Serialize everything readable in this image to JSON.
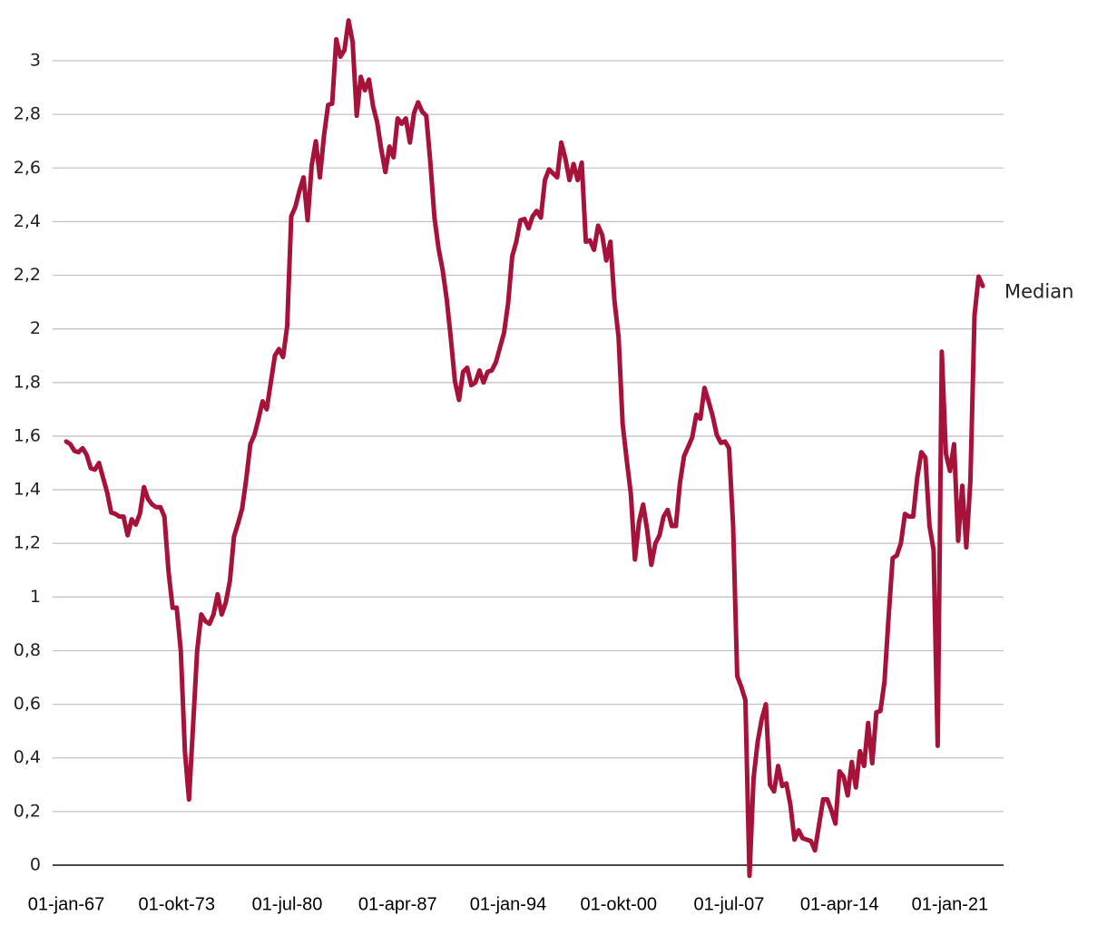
{
  "chart_data": {
    "type": "line",
    "categories": [
      "01-jan-67",
      null,
      null,
      null,
      null,
      null,
      null,
      null,
      null,
      null,
      null,
      null,
      null,
      null,
      null,
      null,
      null,
      null,
      null,
      null,
      null,
      null,
      null,
      null,
      null,
      null,
      null,
      "01-okt-73",
      null,
      null,
      null,
      null,
      null,
      null,
      null,
      null,
      null,
      null,
      null,
      null,
      null,
      null,
      null,
      null,
      null,
      null,
      null,
      null,
      null,
      null,
      null,
      null,
      null,
      null,
      "01-jul-80",
      null,
      null,
      null,
      null,
      null,
      null,
      null,
      null,
      null,
      null,
      null,
      null,
      null,
      null,
      null,
      null,
      null,
      null,
      null,
      null,
      null,
      null,
      null,
      null,
      null,
      null,
      "01-apr-87",
      null,
      null,
      null,
      null,
      null,
      null,
      null,
      null,
      null,
      null,
      null,
      null,
      null,
      null,
      null,
      null,
      null,
      null,
      null,
      null,
      null,
      null,
      null,
      null,
      null,
      null,
      "01-jan-94",
      null,
      null,
      null,
      null,
      null,
      null,
      null,
      null,
      null,
      null,
      null,
      null,
      null,
      null,
      null,
      null,
      null,
      null,
      null,
      null,
      null,
      null,
      null,
      null,
      null,
      null,
      "01-okt-00",
      null,
      null,
      null,
      null,
      null,
      null,
      null,
      null,
      null,
      null,
      null,
      null,
      null,
      null,
      null,
      null,
      null,
      null,
      null,
      null,
      null,
      null,
      null,
      null,
      null,
      null,
      "01-jul-07",
      null,
      null,
      null,
      null,
      null,
      null,
      null,
      null,
      null,
      null,
      null,
      null,
      null,
      null,
      null,
      null,
      null,
      null,
      null,
      null,
      null,
      null,
      null,
      null,
      null,
      null,
      "01-apr-14",
      null,
      null,
      null,
      null,
      null,
      null,
      null,
      null,
      null,
      null,
      null,
      null,
      null,
      null,
      null,
      null,
      null,
      null,
      null,
      null,
      null,
      null,
      null,
      null,
      null,
      null,
      "01-jan-21",
      null,
      null,
      null,
      null,
      null,
      null,
      null,
      null
    ],
    "series": [
      {
        "name": "Median",
        "color": "#a6123a",
        "values": [
          1.58,
          1.57,
          1.545,
          1.54,
          1.555,
          1.53,
          1.48,
          1.475,
          1.5,
          1.445,
          1.39,
          1.315,
          1.31,
          1.3,
          1.3,
          1.23,
          1.29,
          1.27,
          1.31,
          1.41,
          1.365,
          1.345,
          1.335,
          1.335,
          1.3,
          1.095,
          0.96,
          0.96,
          0.8,
          0.425,
          0.245,
          0.52,
          0.8,
          0.935,
          0.91,
          0.9,
          0.935,
          1.01,
          0.935,
          0.98,
          1.06,
          1.225,
          1.275,
          1.33,
          1.44,
          1.57,
          1.605,
          1.665,
          1.73,
          1.7,
          1.8,
          1.9,
          1.925,
          1.895,
          2.01,
          2.42,
          2.455,
          2.515,
          2.565,
          2.405,
          2.61,
          2.7,
          2.565,
          2.72,
          2.835,
          2.84,
          3.08,
          3.015,
          3.04,
          3.15,
          3.07,
          2.795,
          2.94,
          2.89,
          2.93,
          2.83,
          2.77,
          2.67,
          2.585,
          2.68,
          2.64,
          2.785,
          2.765,
          2.785,
          2.695,
          2.805,
          2.845,
          2.81,
          2.795,
          2.62,
          2.415,
          2.3,
          2.22,
          2.11,
          1.965,
          1.805,
          1.735,
          1.84,
          1.855,
          1.79,
          1.8,
          1.845,
          1.8,
          1.84,
          1.845,
          1.875,
          1.93,
          1.985,
          2.095,
          2.27,
          2.325,
          2.405,
          2.41,
          2.375,
          2.42,
          2.44,
          2.415,
          2.555,
          2.595,
          2.58,
          2.565,
          2.695,
          2.635,
          2.555,
          2.615,
          2.555,
          2.62,
          2.325,
          2.33,
          2.295,
          2.385,
          2.35,
          2.255,
          2.325,
          2.105,
          1.97,
          1.645,
          1.51,
          1.385,
          1.14,
          1.28,
          1.345,
          1.25,
          1.12,
          1.2,
          1.23,
          1.3,
          1.325,
          1.265,
          1.265,
          1.425,
          1.525,
          1.56,
          1.595,
          1.68,
          1.665,
          1.78,
          1.73,
          1.675,
          1.605,
          1.575,
          1.58,
          1.555,
          1.265,
          0.705,
          0.665,
          0.615,
          -0.04,
          0.325,
          0.46,
          0.545,
          0.6,
          0.3,
          0.275,
          0.37,
          0.295,
          0.305,
          0.225,
          0.095,
          0.13,
          0.1,
          0.095,
          0.09,
          0.055,
          0.15,
          0.245,
          0.245,
          0.205,
          0.155,
          0.35,
          0.33,
          0.26,
          0.385,
          0.29,
          0.425,
          0.37,
          0.53,
          0.38,
          0.57,
          0.575,
          0.685,
          0.925,
          1.145,
          1.155,
          1.2,
          1.31,
          1.3,
          1.3,
          1.445,
          1.54,
          1.52,
          1.265,
          1.175,
          0.445,
          1.915,
          1.535,
          1.47,
          1.57,
          1.21,
          1.415,
          1.185,
          1.435,
          2.05,
          2.195,
          2.16
        ]
      }
    ],
    "ylim": [
      0,
      3
    ],
    "yticks": [
      0,
      {
        "value": 0.2,
        "label": "0,2"
      },
      {
        "value": 0.4,
        "label": "0,4"
      },
      {
        "value": 0.6,
        "label": "0,6"
      },
      {
        "value": 0.8,
        "label": "0,8"
      },
      1,
      {
        "value": 1.2,
        "label": "1,2"
      },
      {
        "value": 1.4,
        "label": "1,4"
      },
      {
        "value": 1.6,
        "label": "1,6"
      },
      {
        "value": 1.8,
        "label": "1,8"
      },
      2,
      {
        "value": 2.2,
        "label": "2,2"
      },
      {
        "value": 2.4,
        "label": "2,4"
      },
      {
        "value": 2.6,
        "label": "2,6"
      },
      {
        "value": 2.8,
        "label": "2,8"
      },
      3
    ],
    "grid": true
  }
}
